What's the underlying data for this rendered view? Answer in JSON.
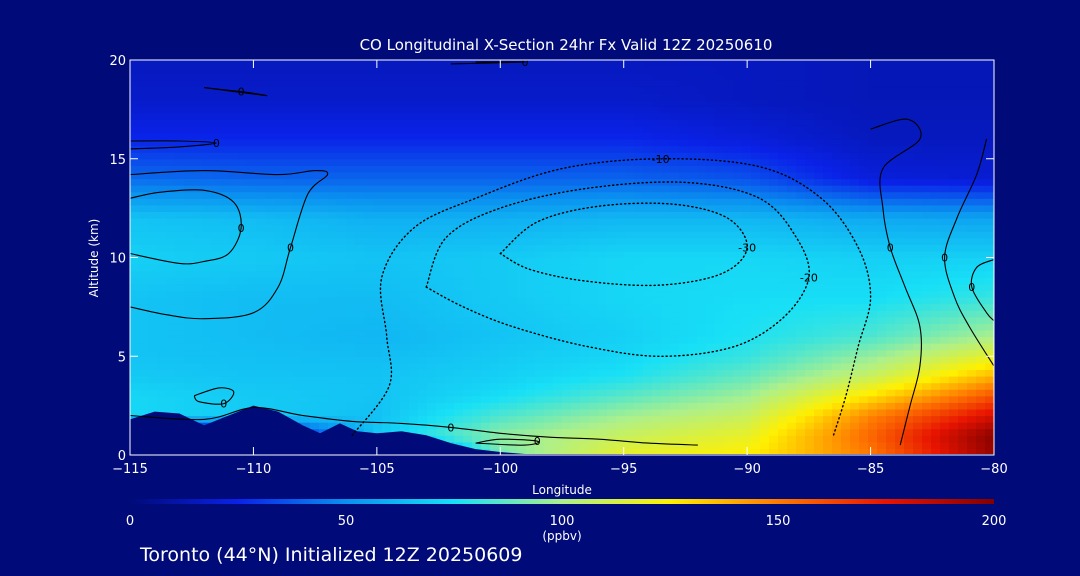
{
  "chart_data": {
    "type": "heatmap",
    "title": "CO Longitudinal X-Section 24hr  Fx Valid 12Z 20250610",
    "xlabel": "Longitude",
    "ylabel": "Altitude (km)",
    "xlim": [
      -115,
      -80
    ],
    "ylim": [
      0,
      20
    ],
    "x_ticks": [
      -115,
      -110,
      -105,
      -100,
      -95,
      -90,
      -85,
      -80
    ],
    "y_ticks": [
      0,
      5,
      10,
      15,
      20
    ],
    "colorbar": {
      "label": "(ppbv)",
      "range": [
        0,
        200
      ],
      "ticks": [
        0,
        50,
        100,
        150,
        200
      ],
      "colors": [
        "#000a78",
        "#0a22e8",
        "#0a90f0",
        "#18e0f6",
        "#aef08a",
        "#fff000",
        "#ff7a00",
        "#e81400",
        "#820000"
      ]
    },
    "field": {
      "description_units": "ppbv",
      "lon": [
        -115,
        -110,
        -105,
        -100,
        -95,
        -90,
        -85,
        -80
      ],
      "alt": [
        0,
        1,
        2,
        3,
        4,
        5,
        6,
        8,
        10,
        12,
        14,
        16,
        18,
        20
      ],
      "values": [
        [
          0,
          0,
          0,
          90,
          118,
          125,
          150,
          195
        ],
        [
          0,
          0,
          68,
          95,
          108,
          118,
          155,
          198
        ],
        [
          72,
          68,
          65,
          84,
          98,
          108,
          148,
          180
        ],
        [
          72,
          68,
          66,
          74,
          86,
          98,
          128,
          160
        ],
        [
          68,
          66,
          66,
          70,
          76,
          88,
          108,
          138
        ],
        [
          66,
          65,
          64,
          68,
          72,
          80,
          96,
          118
        ],
        [
          66,
          64,
          62,
          66,
          70,
          76,
          84,
          100
        ],
        [
          66,
          64,
          64,
          68,
          72,
          74,
          74,
          80
        ],
        [
          70,
          68,
          66,
          68,
          72,
          72,
          70,
          70
        ],
        [
          66,
          64,
          60,
          60,
          62,
          62,
          58,
          56
        ],
        [
          42,
          40,
          40,
          40,
          40,
          36,
          22,
          20
        ],
        [
          26,
          26,
          26,
          26,
          26,
          22,
          16,
          16
        ],
        [
          18,
          18,
          18,
          18,
          18,
          16,
          14,
          14
        ],
        [
          16,
          16,
          16,
          16,
          16,
          16,
          14,
          14
        ]
      ]
    },
    "contours": [
      {
        "label": "0",
        "style": "solid",
        "points": [
          [
            -115,
            14.2
          ],
          [
            -112,
            14.4
          ],
          [
            -109,
            14.2
          ],
          [
            -107.5,
            14.4
          ],
          [
            -107,
            14.2
          ],
          [
            -107.8,
            13.2
          ],
          [
            -108.5,
            10.5
          ],
          [
            -109,
            8.5
          ],
          [
            -110,
            7.2
          ],
          [
            -112,
            6.9
          ],
          [
            -113.5,
            7.1
          ],
          [
            -115,
            7.5
          ]
        ]
      },
      {
        "label": "0",
        "style": "solid",
        "points": [
          [
            -115,
            10.2
          ],
          [
            -113,
            9.7
          ],
          [
            -112,
            9.8
          ],
          [
            -111,
            10.2
          ],
          [
            -110.5,
            11.5
          ],
          [
            -110.8,
            12.8
          ],
          [
            -112,
            13.4
          ],
          [
            -113.8,
            13.3
          ],
          [
            -115,
            13.0
          ]
        ]
      },
      {
        "label": "0",
        "style": "solid",
        "points": [
          [
            -115,
            15.5
          ],
          [
            -113,
            15.6
          ],
          [
            -111.5,
            15.8
          ],
          [
            -113,
            15.9
          ],
          [
            -115,
            15.9
          ]
        ]
      },
      {
        "label": "0",
        "style": "solid",
        "points": [
          [
            -112,
            18.6
          ],
          [
            -109.5,
            18.2
          ],
          [
            -110.5,
            18.4
          ],
          [
            -112,
            18.6
          ]
        ]
      },
      {
        "label": "0",
        "style": "solid",
        "points": [
          [
            -115,
            2.0
          ],
          [
            -112,
            1.8
          ],
          [
            -110,
            2.4
          ],
          [
            -108,
            2.0
          ],
          [
            -106,
            1.7
          ],
          [
            -104,
            1.6
          ],
          [
            -102,
            1.4
          ],
          [
            -100,
            1.1
          ],
          [
            -98,
            0.9
          ],
          [
            -96,
            0.8
          ],
          [
            -94,
            0.6
          ],
          [
            -92,
            0.5
          ]
        ]
      },
      {
        "label": "0",
        "style": "solid",
        "points": [
          [
            -112.4,
            3.0
          ],
          [
            -111.4,
            3.4
          ],
          [
            -110.8,
            3.2
          ],
          [
            -111.2,
            2.6
          ],
          [
            -112.2,
            2.7
          ],
          [
            -112.4,
            3.0
          ]
        ]
      },
      {
        "label": "0",
        "style": "solid",
        "points": [
          [
            -101,
            0.6
          ],
          [
            -99,
            0.5
          ],
          [
            -98.5,
            0.7
          ],
          [
            -100,
            0.8
          ],
          [
            -101,
            0.6
          ]
        ]
      },
      {
        "label": "0",
        "style": "solid",
        "points": [
          [
            -85,
            16.5
          ],
          [
            -83.5,
            17.0
          ],
          [
            -83.0,
            16.0
          ],
          [
            -84.5,
            14.5
          ],
          [
            -84.5,
            12.5
          ],
          [
            -84.2,
            10.5
          ],
          [
            -83.6,
            8.5
          ],
          [
            -83.0,
            6.5
          ],
          [
            -83.0,
            4.5
          ],
          [
            -83.4,
            2.5
          ],
          [
            -83.8,
            0.5
          ]
        ]
      },
      {
        "label": "0",
        "style": "solid",
        "points": [
          [
            -80.3,
            16.0
          ],
          [
            -80.7,
            14.2
          ],
          [
            -81.5,
            12.0
          ],
          [
            -82.0,
            10.0
          ],
          [
            -81.6,
            8.0
          ],
          [
            -81.0,
            6.5
          ],
          [
            -80.0,
            4.5
          ]
        ]
      },
      {
        "label": "0",
        "style": "solid",
        "points": [
          [
            -80,
            9.9
          ],
          [
            -80.7,
            9.5
          ],
          [
            -80.9,
            8.5
          ],
          [
            -80.3,
            7.2
          ],
          [
            -80,
            6.8
          ]
        ]
      },
      {
        "label": "0",
        "style": "solid",
        "points": [
          [
            -101,
            19.9
          ],
          [
            -99,
            19.9
          ],
          [
            -102,
            19.8
          ]
        ]
      },
      {
        "label": "-10",
        "style": "dotted",
        "points": [
          [
            -106,
            1.0
          ],
          [
            -104.5,
            3.5
          ],
          [
            -104.6,
            6.0
          ],
          [
            -104.8,
            9.0
          ],
          [
            -103.5,
            11.5
          ],
          [
            -101,
            13.0
          ],
          [
            -97.5,
            14.5
          ],
          [
            -93.5,
            15.0
          ],
          [
            -89.5,
            14.6
          ],
          [
            -87,
            13.0
          ],
          [
            -85.5,
            10.5
          ],
          [
            -85,
            8.0
          ],
          [
            -85.5,
            5.5
          ],
          [
            -86,
            3.0
          ],
          [
            -86.5,
            1.0
          ]
        ]
      },
      {
        "label": "-20",
        "style": "dotted",
        "points": [
          [
            -103,
            8.5
          ],
          [
            -102.2,
            11.0
          ],
          [
            -100.0,
            12.5
          ],
          [
            -96.5,
            13.5
          ],
          [
            -92.5,
            13.8
          ],
          [
            -89.5,
            13.0
          ],
          [
            -88,
            11.0
          ],
          [
            -87.5,
            9.0
          ],
          [
            -88.5,
            7.0
          ],
          [
            -90.5,
            5.5
          ],
          [
            -93.5,
            5.0
          ],
          [
            -96.5,
            5.5
          ],
          [
            -99.5,
            6.5
          ],
          [
            -101.5,
            7.5
          ],
          [
            -103,
            8.5
          ]
        ]
      },
      {
        "label": "-30",
        "style": "dotted",
        "points": [
          [
            -100,
            10.2
          ],
          [
            -98.5,
            11.8
          ],
          [
            -96,
            12.6
          ],
          [
            -93,
            12.7
          ],
          [
            -90.8,
            12.0
          ],
          [
            -90,
            10.5
          ],
          [
            -91,
            9.2
          ],
          [
            -93.5,
            8.6
          ],
          [
            -96.5,
            8.8
          ],
          [
            -98.8,
            9.4
          ],
          [
            -100,
            10.2
          ]
        ]
      }
    ]
  },
  "footer": {
    "station": "Toronto (44°N) Initialized 12Z 20250609"
  }
}
